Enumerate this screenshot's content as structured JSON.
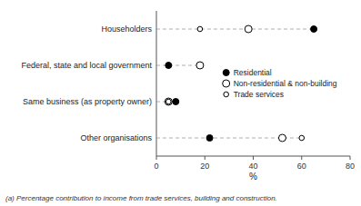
{
  "chart_data": {
    "type": "dot",
    "categories": [
      "Householders",
      "Federal, state and local government",
      "Same business (as property owner)",
      "Other organisations"
    ],
    "series": [
      {
        "name": "Residential",
        "values": [
          65,
          5,
          8,
          22
        ],
        "color": "#000000",
        "marker": "filled-circle"
      },
      {
        "name": "Non-residential & non-building",
        "values": [
          38,
          18,
          5,
          52
        ],
        "color": "#000000",
        "marker": "open-circle"
      },
      {
        "name": "Trade services",
        "values": [
          18,
          5,
          5,
          60
        ],
        "color": "#000000",
        "marker": "small-open-circle"
      }
    ],
    "xlim": [
      0,
      80
    ],
    "xticks": [
      0,
      20,
      40,
      60,
      80
    ],
    "xlabel": "%",
    "footnote": "(a) Percentage contribution to income from trade services, building and construction.",
    "legend": "right"
  }
}
